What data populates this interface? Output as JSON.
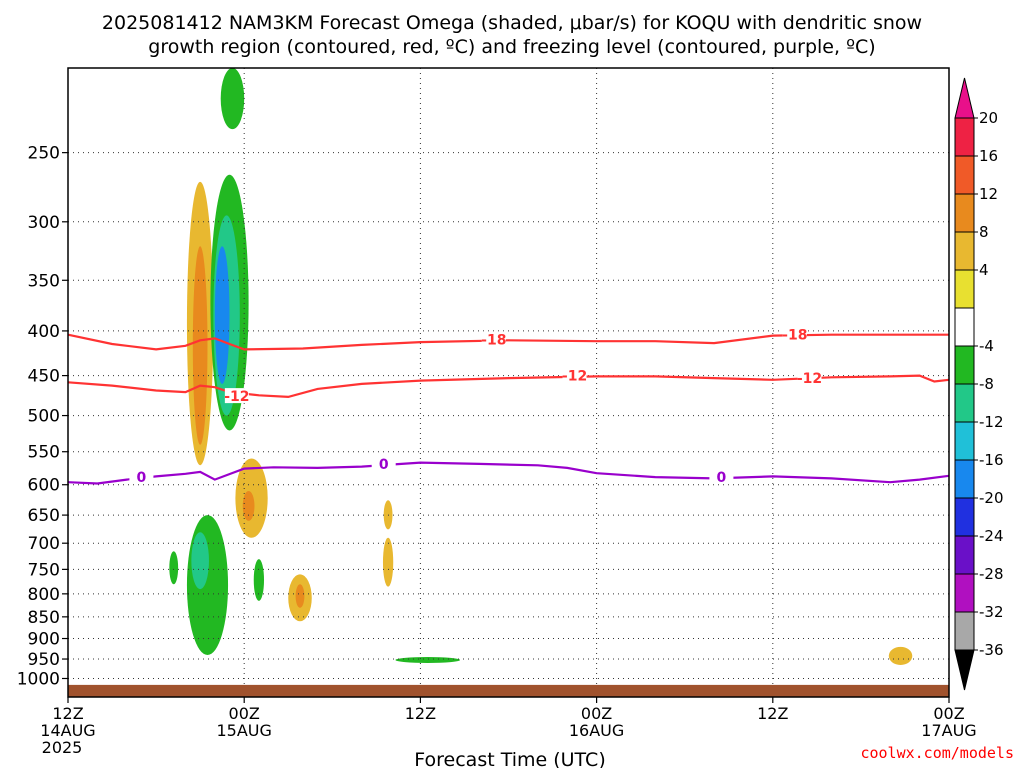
{
  "title_line1": "2025081412 NAM3KM Forecast Omega (shaded, μbar/s) for KOQU with dendritic snow",
  "title_line2": "growth region (contoured, red, ºC) and freezing level (contoured, purple, ºC)",
  "footer": "coolwx.com/models",
  "colors": {
    "snow_growth": "#ff3333",
    "freezing": "#9900cc",
    "ground": "#a0522d",
    "grid": "#333333"
  },
  "chart_data": {
    "type": "heatmap",
    "xlabel": "Forecast Time (UTC)",
    "x_ticks": [
      {
        "hour": 0,
        "l1": "12Z",
        "l2": "14AUG",
        "l3": "2025"
      },
      {
        "hour": 12,
        "l1": "00Z",
        "l2": "15AUG",
        "l3": ""
      },
      {
        "hour": 24,
        "l1": "12Z",
        "l2": "",
        "l3": ""
      },
      {
        "hour": 36,
        "l1": "00Z",
        "l2": "16AUG",
        "l3": ""
      },
      {
        "hour": 48,
        "l1": "12Z",
        "l2": "",
        "l3": ""
      },
      {
        "hour": 60,
        "l1": "00Z",
        "l2": "17AUG",
        "l3": ""
      }
    ],
    "x_range": [
      0,
      60
    ],
    "y_scale": "log",
    "y_range": [
      1050,
      200
    ],
    "y_ticks": [
      250,
      300,
      350,
      400,
      450,
      500,
      550,
      600,
      650,
      700,
      750,
      800,
      850,
      900,
      950,
      1000
    ],
    "grid": true,
    "colorbar": {
      "labels": [
        "20",
        "16",
        "12",
        "8",
        "4",
        "-4",
        "-8",
        "-12",
        "-16",
        "-20",
        "-24",
        "-28",
        "-32",
        "-36"
      ],
      "colors": [
        "#ee2244",
        "#f05a28",
        "#e88a1e",
        "#e8b830",
        "#e8e030",
        "#ffffff",
        "#22b822",
        "#22c888",
        "#20c0d8",
        "#1888ee",
        "#2030e0",
        "#6a10c8",
        "#b010c0",
        "#a8a8a8"
      ],
      "top_arrow": "#e8108a",
      "bottom_arrow": "#000000"
    },
    "series": [
      {
        "name": "-18",
        "color": "#ff3333",
        "points": [
          [
            0,
            404
          ],
          [
            3,
            414
          ],
          [
            6,
            420
          ],
          [
            8,
            416
          ],
          [
            9,
            410
          ],
          [
            10,
            408
          ],
          [
            11,
            414
          ],
          [
            12,
            420
          ],
          [
            16,
            419
          ],
          [
            20,
            415
          ],
          [
            24,
            412
          ],
          [
            30,
            410
          ],
          [
            36,
            411
          ],
          [
            40,
            411
          ],
          [
            44,
            413
          ],
          [
            48,
            405
          ],
          [
            52,
            404
          ],
          [
            56,
            404
          ],
          [
            60,
            404
          ]
        ],
        "labels": [
          [
            29,
            409
          ],
          [
            49.5,
            404
          ]
        ]
      },
      {
        "name": "-12",
        "color": "#ff3333",
        "points": [
          [
            0,
            458
          ],
          [
            3,
            462
          ],
          [
            6,
            468
          ],
          [
            8,
            470
          ],
          [
            9,
            462
          ],
          [
            10,
            464
          ],
          [
            11,
            470
          ],
          [
            13,
            474
          ],
          [
            15,
            476
          ],
          [
            17,
            466
          ],
          [
            20,
            460
          ],
          [
            24,
            456
          ],
          [
            30,
            453
          ],
          [
            36,
            451
          ],
          [
            40,
            451
          ],
          [
            44,
            453
          ],
          [
            48,
            455
          ],
          [
            52,
            452
          ],
          [
            56,
            451
          ],
          [
            58,
            450
          ],
          [
            59,
            457
          ],
          [
            60,
            455
          ]
        ],
        "labels": [
          [
            11.5,
            475
          ],
          [
            34.5,
            450
          ],
          [
            50.5,
            453
          ]
        ]
      },
      {
        "name": "0",
        "color": "#9900cc",
        "points": [
          [
            0,
            596
          ],
          [
            2,
            598
          ],
          [
            4,
            592
          ],
          [
            6,
            587
          ],
          [
            8,
            583
          ],
          [
            9,
            580
          ],
          [
            10,
            592
          ],
          [
            12,
            575
          ],
          [
            14,
            573
          ],
          [
            17,
            574
          ],
          [
            20,
            572
          ],
          [
            24,
            566
          ],
          [
            28,
            568
          ],
          [
            32,
            570
          ],
          [
            34,
            574
          ],
          [
            36,
            582
          ],
          [
            40,
            588
          ],
          [
            44,
            590
          ],
          [
            48,
            587
          ],
          [
            52,
            590
          ],
          [
            56,
            596
          ],
          [
            58,
            592
          ],
          [
            60,
            586
          ]
        ],
        "labels": [
          [
            5,
            588
          ],
          [
            21.5,
            568
          ],
          [
            44.5,
            588
          ]
        ]
      }
    ],
    "omega_shaded": [
      {
        "value": -8,
        "t": 11.2,
        "p1": 200,
        "p2": 235,
        "w": 0.8
      },
      {
        "value": 8,
        "t": 9.0,
        "p1": 270,
        "p2": 570,
        "w": 0.9
      },
      {
        "value": 12,
        "t": 9.0,
        "p1": 320,
        "p2": 540,
        "w": 0.5
      },
      {
        "value": -8,
        "t": 11.0,
        "p1": 265,
        "p2": 520,
        "w": 1.3
      },
      {
        "value": -12,
        "t": 10.8,
        "p1": 295,
        "p2": 500,
        "w": 0.9
      },
      {
        "value": -20,
        "t": 10.5,
        "p1": 320,
        "p2": 460,
        "w": 0.5
      },
      {
        "value": 8,
        "t": 12.5,
        "p1": 560,
        "p2": 690,
        "w": 1.1
      },
      {
        "value": 12,
        "t": 12.3,
        "p1": 610,
        "p2": 660,
        "w": 0.4
      },
      {
        "value": -8,
        "t": 9.5,
        "p1": 650,
        "p2": 940,
        "w": 1.4
      },
      {
        "value": -12,
        "t": 9.0,
        "p1": 680,
        "p2": 790,
        "w": 0.6
      },
      {
        "value": -8,
        "t": 7.2,
        "p1": 715,
        "p2": 780,
        "w": 0.3
      },
      {
        "value": -8,
        "t": 13.0,
        "p1": 730,
        "p2": 815,
        "w": 0.35
      },
      {
        "value": 8,
        "t": 15.8,
        "p1": 760,
        "p2": 860,
        "w": 0.8
      },
      {
        "value": 12,
        "t": 15.8,
        "p1": 780,
        "p2": 830,
        "w": 0.3
      },
      {
        "value": 8,
        "t": 21.8,
        "p1": 625,
        "p2": 675,
        "w": 0.3
      },
      {
        "value": 8,
        "t": 21.8,
        "p1": 690,
        "p2": 785,
        "w": 0.35
      },
      {
        "value": -8,
        "t": 24.5,
        "p1": 945,
        "p2": 960,
        "w": 2.2
      },
      {
        "value": 8,
        "t": 56.7,
        "p1": 920,
        "p2": 965,
        "w": 0.8
      }
    ]
  }
}
